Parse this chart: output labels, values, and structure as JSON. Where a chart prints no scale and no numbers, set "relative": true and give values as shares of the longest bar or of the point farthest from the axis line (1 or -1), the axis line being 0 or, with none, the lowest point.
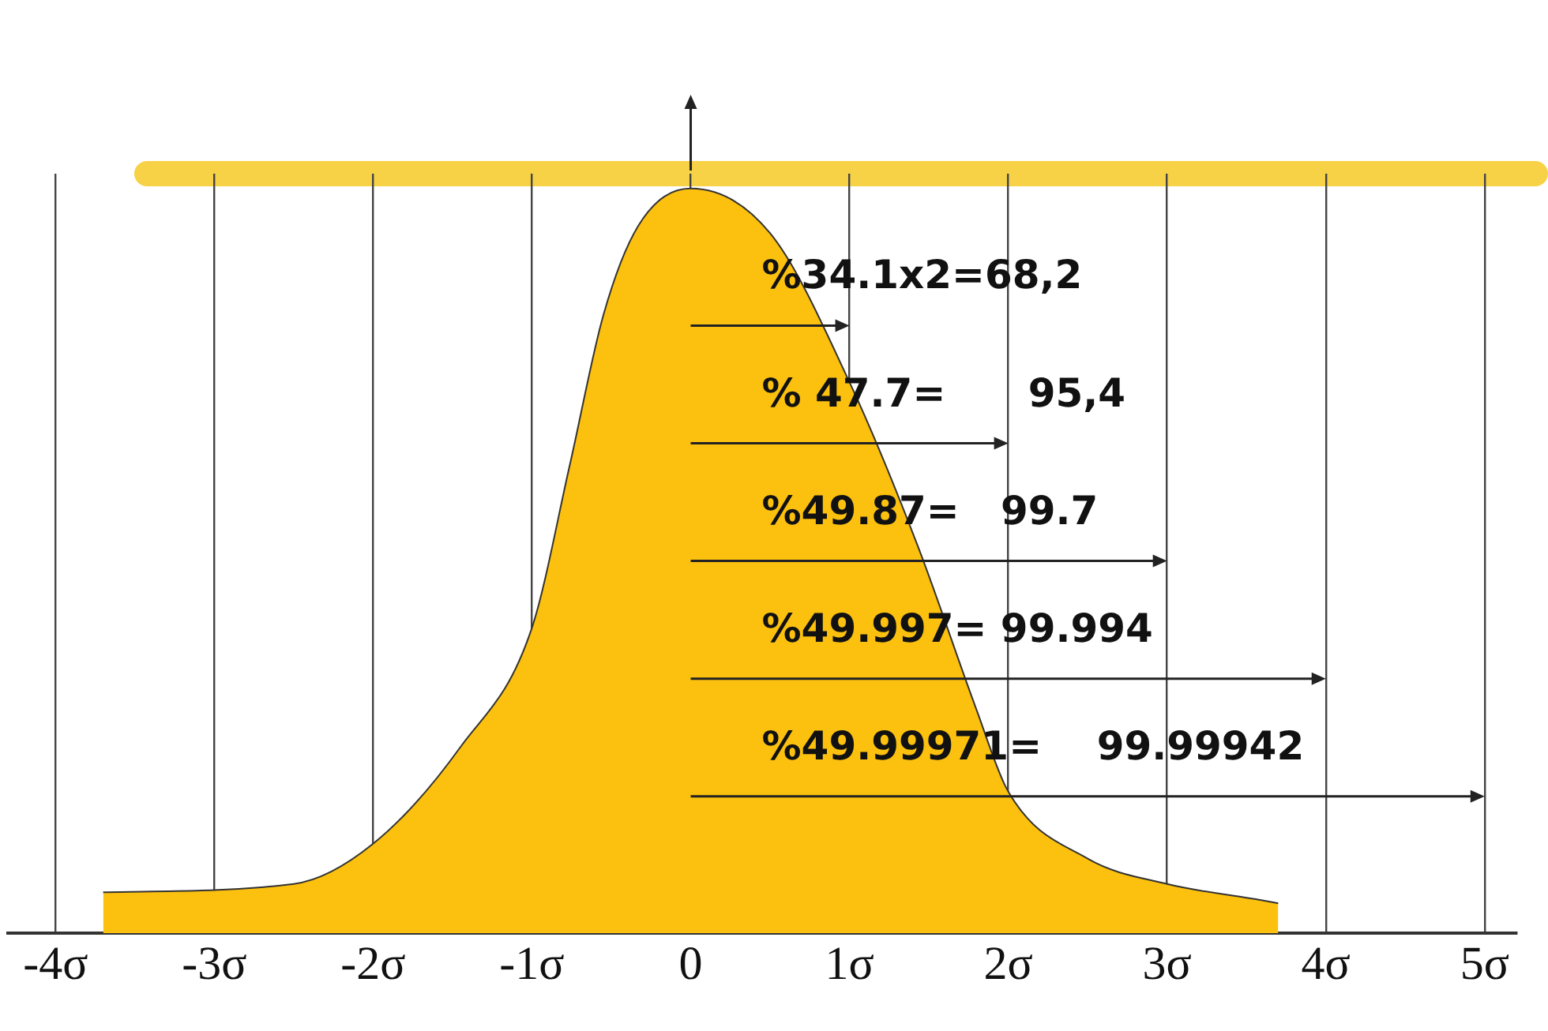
{
  "chart_data": {
    "type": "area",
    "relative": true,
    "x": [
      -3.7,
      -2.5,
      -2,
      -1.45,
      -1,
      -0.76,
      -0.55,
      -0.33,
      0,
      0.5,
      1,
      1.43,
      1.8,
      2,
      2.5,
      3,
      3.6,
      3.7
    ],
    "series": [
      {
        "color": "#fcc10f",
        "values": [
          0.055,
          0.066,
          0.12,
          0.25,
          0.41,
          0.63,
          0.83,
          0.95,
          1,
          0.94,
          0.74,
          0.52,
          0.3,
          0.19,
          0.1,
          0.066,
          0.044,
          0.04
        ]
      }
    ],
    "xlim": [
      -4.3,
      5.2
    ],
    "xticks": [
      {
        "value": -4,
        "label": "-4σ"
      },
      {
        "value": -3,
        "label": "-3σ"
      },
      {
        "value": -2,
        "label": "-2σ"
      },
      {
        "value": -1,
        "label": "-1σ"
      },
      0,
      {
        "value": 1,
        "label": "1σ"
      },
      {
        "value": 2,
        "label": "2σ"
      },
      {
        "value": 3,
        "label": "3σ"
      },
      {
        "value": 4,
        "label": "4σ"
      },
      {
        "value": 5,
        "label": "5σ"
      }
    ],
    "grid": "x",
    "legend": false,
    "marker": "none",
    "annotations": [
      "%34.1x2=68,2",
      "% 47.7=      95,4",
      "%49.87=   99.7",
      "%49.997= 99.994",
      "%49.99971=    99.99942"
    ]
  }
}
